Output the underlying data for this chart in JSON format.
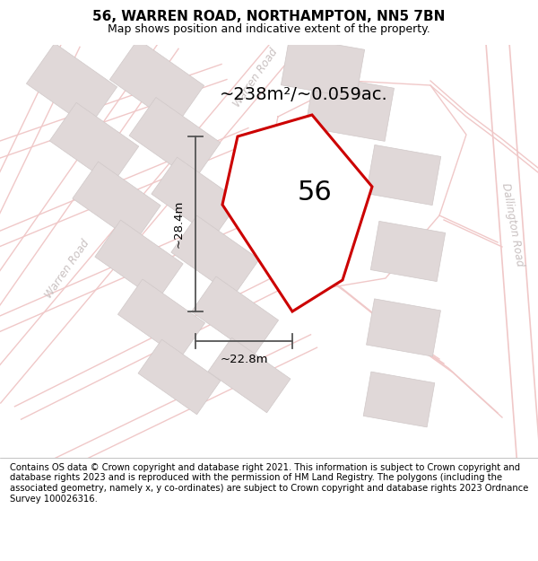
{
  "title_line1": "56, WARREN ROAD, NORTHAMPTON, NN5 7BN",
  "title_line2": "Map shows position and indicative extent of the property.",
  "footer_text": "Contains OS data © Crown copyright and database right 2021. This information is subject to Crown copyright and database rights 2023 and is reproduced with the permission of HM Land Registry. The polygons (including the associated geometry, namely x, y co-ordinates) are subject to Crown copyright and database rights 2023 Ordnance Survey 100026316.",
  "area_label": "~238m²/~0.059ac.",
  "number_label": "56",
  "dim_width": "~22.8m",
  "dim_height": "~28.4m",
  "road_label_warren_road_diag": "Warren Road",
  "road_label_warren_road_left": "Warren Road",
  "road_label_dallington": "Dallington Road",
  "map_bg": "#f9f6f6",
  "road_color": "#f0c8c8",
  "road_lw": 1.0,
  "building_color": "#e0d8d8",
  "building_ec": "#d0c8c8",
  "property_outline_color": "#cc0000",
  "property_fill": "#ffffff",
  "dim_color": "#555555",
  "road_text_color": "#c8c0c0",
  "title_fontsize": 11,
  "subtitle_fontsize": 9,
  "footer_fontsize": 7.2,
  "area_fontsize": 14,
  "number_fontsize": 22,
  "dim_fontsize": 9.5,
  "road_fontsize": 8.5
}
